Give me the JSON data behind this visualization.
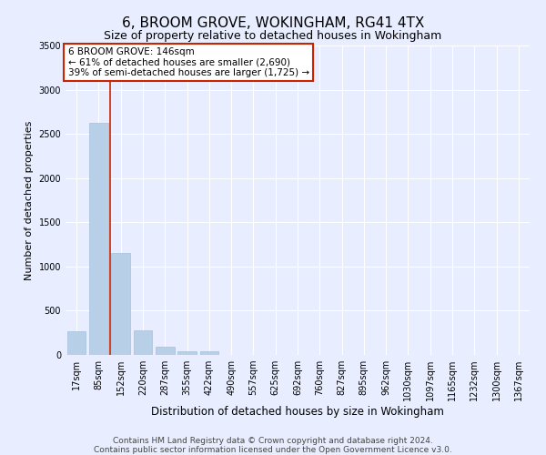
{
  "title": "6, BROOM GROVE, WOKINGHAM, RG41 4TX",
  "subtitle": "Size of property relative to detached houses in Wokingham",
  "xlabel": "Distribution of detached houses by size in Wokingham",
  "ylabel": "Number of detached properties",
  "footer_line1": "Contains HM Land Registry data © Crown copyright and database right 2024.",
  "footer_line2": "Contains public sector information licensed under the Open Government Licence v3.0.",
  "bar_labels": [
    "17sqm",
    "85sqm",
    "152sqm",
    "220sqm",
    "287sqm",
    "355sqm",
    "422sqm",
    "490sqm",
    "557sqm",
    "625sqm",
    "692sqm",
    "760sqm",
    "827sqm",
    "895sqm",
    "962sqm",
    "1030sqm",
    "1097sqm",
    "1165sqm",
    "1232sqm",
    "1300sqm",
    "1367sqm"
  ],
  "bar_values": [
    270,
    2630,
    1150,
    280,
    90,
    45,
    40,
    0,
    0,
    0,
    0,
    0,
    0,
    0,
    0,
    0,
    0,
    0,
    0,
    0,
    0
  ],
  "bar_color": "#b8cfe8",
  "bar_edge_color": "#9ab8d8",
  "vline_color": "#cc2200",
  "vline_x": 1.5,
  "annotation_text": "6 BROOM GROVE: 146sqm\n← 61% of detached houses are smaller (2,690)\n39% of semi-detached houses are larger (1,725) →",
  "annotation_box_facecolor": "#ffffff",
  "annotation_box_edgecolor": "#cc2200",
  "ylim_max": 3500,
  "yticks": [
    0,
    500,
    1000,
    1500,
    2000,
    2500,
    3000,
    3500
  ],
  "bg_color": "#e8eeff",
  "grid_color": "#ffffff",
  "title_fontsize": 11,
  "subtitle_fontsize": 9,
  "ylabel_fontsize": 8,
  "xlabel_fontsize": 8.5,
  "tick_fontsize": 7,
  "annotation_fontsize": 7.5,
  "footer_fontsize": 6.5
}
